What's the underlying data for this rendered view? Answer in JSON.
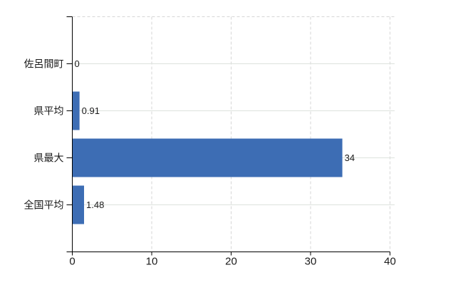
{
  "chart_data": {
    "type": "bar",
    "orientation": "horizontal",
    "title": "",
    "xlabel": "",
    "ylabel": "",
    "categories": [
      "佐呂間町",
      "県平均",
      "県最大",
      "全国平均"
    ],
    "values": [
      0,
      0.91,
      34,
      1.48
    ],
    "value_labels": [
      "0",
      "0.91",
      "34",
      "1.48"
    ],
    "xlim": [
      0,
      40
    ],
    "x_ticks": [
      0,
      10,
      20,
      30,
      40
    ],
    "x_tick_labels": [
      "0",
      "10",
      "20",
      "30",
      "40"
    ],
    "grid": "on",
    "legend": "none",
    "colors": {
      "bar": "#3d6db4",
      "axis": "#000000",
      "grid_vertical": "#d6d6d6",
      "grid_horizontal": "#dde2dd",
      "text": "#1a1a1a"
    }
  }
}
